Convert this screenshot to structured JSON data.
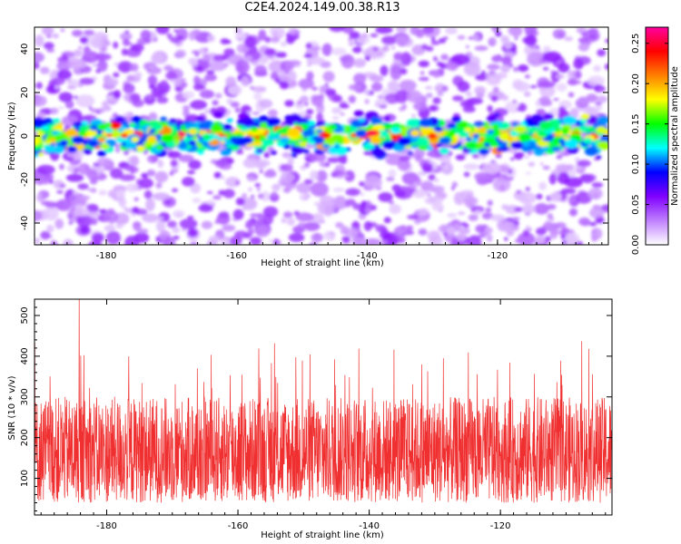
{
  "title": "C2E4.2024.149.00.38.R13",
  "chart_data": [
    {
      "type": "heatmap",
      "xlabel": "Height of straight line (km)",
      "ylabel": "Frequency (Hz)",
      "xlim": [
        -191,
        -103
      ],
      "ylim": [
        -50,
        50
      ],
      "x_ticks": [
        -180,
        -160,
        -140,
        -120
      ],
      "y_ticks": [
        -40,
        -20,
        0,
        20,
        40
      ],
      "description_band": {
        "center_frequency": 0,
        "half_width": 8
      },
      "peak_amplitude": 0.26,
      "colorbar": {
        "label": "Normalized spectral amplitude",
        "range": [
          0.0,
          0.27
        ],
        "ticks": [
          0.0,
          0.05,
          0.1,
          0.15,
          0.2,
          0.25
        ],
        "tick_labels": [
          "0.00",
          "0.05",
          "0.10",
          "0.15",
          "0.20",
          "0.25"
        ],
        "colors": [
          "#ffffff",
          "#c080ff",
          "#8000ff",
          "#0000ff",
          "#00ffff",
          "#00ff00",
          "#ffff00",
          "#ff8000",
          "#ff0000",
          "#ff00a0"
        ]
      }
    },
    {
      "type": "line",
      "xlabel": "Height of straight line (km)",
      "ylabel": "SNR (10 * v/v)",
      "xlim": [
        -191,
        -103
      ],
      "ylim": [
        10,
        540
      ],
      "x_ticks": [
        -180,
        -160,
        -140,
        -120
      ],
      "y_ticks": [
        100,
        200,
        300,
        400,
        500
      ],
      "series_color": "#f03030",
      "typical_range": [
        40,
        300
      ],
      "max_value": 540
    }
  ]
}
